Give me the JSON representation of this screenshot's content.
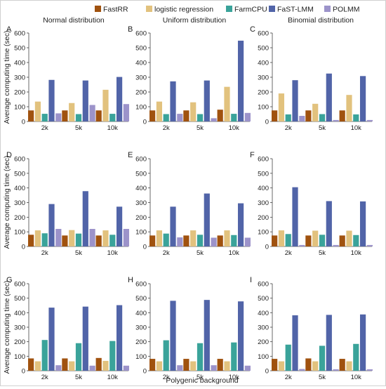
{
  "figure": {
    "xlabel": "Polygenic background",
    "ylabel": "Average computing time (sec)",
    "column_titles": [
      "Normal distribution",
      "Uniform distribution",
      "Binomial distribution"
    ]
  },
  "legend": {
    "placement": "top-center",
    "items": [
      {
        "name": "FastRR",
        "color": "#a0520f"
      },
      {
        "name": "logistic regression",
        "color": "#e2c27e"
      },
      {
        "name": "FarmCPU",
        "color": "#3aa39a"
      },
      {
        "name": "FaST-LMM",
        "color": "#5164a8"
      },
      {
        "name": "POLMM",
        "color": "#9c93ca"
      }
    ]
  },
  "chart_data": [
    {
      "type": "bar",
      "panel": "A",
      "categories": [
        "2k",
        "5k",
        "10k"
      ],
      "ylim": [
        0,
        600
      ],
      "yticks": [
        0,
        100,
        200,
        300,
        400,
        500,
        600
      ],
      "series": [
        {
          "name": "FastRR",
          "values": [
            75,
            75,
            75
          ]
        },
        {
          "name": "logistic regression",
          "values": [
            135,
            125,
            215
          ]
        },
        {
          "name": "FarmCPU",
          "values": [
            52,
            50,
            52
          ]
        },
        {
          "name": "FaST-LMM",
          "values": [
            282,
            278,
            302
          ]
        },
        {
          "name": "POLMM",
          "values": [
            55,
            112,
            118
          ]
        }
      ]
    },
    {
      "type": "bar",
      "panel": "B",
      "categories": [
        "2k",
        "5k",
        "10k"
      ],
      "ylim": [
        0,
        600
      ],
      "yticks": [
        0,
        100,
        200,
        300,
        400,
        500,
        600
      ],
      "series": [
        {
          "name": "FastRR",
          "values": [
            75,
            75,
            80
          ]
        },
        {
          "name": "logistic regression",
          "values": [
            135,
            130,
            235
          ]
        },
        {
          "name": "FarmCPU",
          "values": [
            50,
            50,
            52
          ]
        },
        {
          "name": "FaST-LMM",
          "values": [
            272,
            278,
            548
          ]
        },
        {
          "name": "POLMM",
          "values": [
            52,
            22,
            58
          ]
        }
      ]
    },
    {
      "type": "bar",
      "panel": "C",
      "categories": [
        "2k",
        "5k",
        "10k"
      ],
      "ylim": [
        0,
        600
      ],
      "yticks": [
        0,
        100,
        200,
        300,
        400,
        500,
        600
      ],
      "series": [
        {
          "name": "FastRR",
          "values": [
            75,
            75,
            75
          ]
        },
        {
          "name": "logistic regression",
          "values": [
            190,
            120,
            180
          ]
        },
        {
          "name": "FarmCPU",
          "values": [
            48,
            50,
            48
          ]
        },
        {
          "name": "FaST-LMM",
          "values": [
            280,
            325,
            308
          ]
        },
        {
          "name": "POLMM",
          "values": [
            38,
            10,
            10
          ]
        }
      ]
    },
    {
      "type": "bar",
      "panel": "D",
      "categories": [
        "2k",
        "5k",
        "10k"
      ],
      "ylim": [
        0,
        600
      ],
      "yticks": [
        0,
        100,
        200,
        300,
        400,
        500,
        600
      ],
      "series": [
        {
          "name": "FastRR",
          "values": [
            80,
            75,
            75
          ]
        },
        {
          "name": "logistic regression",
          "values": [
            110,
            112,
            110
          ]
        },
        {
          "name": "FarmCPU",
          "values": [
            90,
            88,
            80
          ]
        },
        {
          "name": "FaST-LMM",
          "values": [
            290,
            378,
            272
          ]
        },
        {
          "name": "POLMM",
          "values": [
            120,
            120,
            120
          ]
        }
      ]
    },
    {
      "type": "bar",
      "panel": "E",
      "categories": [
        "2k",
        "5k",
        "10k"
      ],
      "ylim": [
        0,
        600
      ],
      "yticks": [
        0,
        100,
        200,
        300,
        400,
        500,
        600
      ],
      "series": [
        {
          "name": "FastRR",
          "values": [
            75,
            75,
            75
          ]
        },
        {
          "name": "logistic regression",
          "values": [
            110,
            110,
            110
          ]
        },
        {
          "name": "FarmCPU",
          "values": [
            88,
            80,
            78
          ]
        },
        {
          "name": "FaST-LMM",
          "values": [
            272,
            362,
            295
          ]
        },
        {
          "name": "POLMM",
          "values": [
            62,
            60,
            60
          ]
        }
      ]
    },
    {
      "type": "bar",
      "panel": "F",
      "categories": [
        "2k",
        "5k",
        "10k"
      ],
      "ylim": [
        0,
        600
      ],
      "yticks": [
        0,
        100,
        200,
        300,
        400,
        500,
        600
      ],
      "series": [
        {
          "name": "FastRR",
          "values": [
            75,
            75,
            75
          ]
        },
        {
          "name": "logistic regression",
          "values": [
            110,
            108,
            108
          ]
        },
        {
          "name": "FarmCPU",
          "values": [
            85,
            80,
            78
          ]
        },
        {
          "name": "FaST-LMM",
          "values": [
            405,
            310,
            308
          ]
        },
        {
          "name": "POLMM",
          "values": [
            10,
            10,
            10
          ]
        }
      ]
    },
    {
      "type": "bar",
      "panel": "G",
      "categories": [
        "2k",
        "5k",
        "10k"
      ],
      "ylim": [
        0,
        600
      ],
      "yticks": [
        0,
        100,
        200,
        300,
        400,
        500,
        600
      ],
      "series": [
        {
          "name": "FastRR",
          "values": [
            85,
            85,
            88
          ]
        },
        {
          "name": "logistic regression",
          "values": [
            65,
            65,
            68
          ]
        },
        {
          "name": "FarmCPU",
          "values": [
            212,
            190,
            205
          ]
        },
        {
          "name": "FaST-LMM",
          "values": [
            435,
            442,
            452
          ]
        },
        {
          "name": "POLMM",
          "values": [
            38,
            35,
            35
          ]
        }
      ]
    },
    {
      "type": "bar",
      "panel": "H",
      "categories": [
        "2k",
        "5k",
        "10k"
      ],
      "ylim": [
        0,
        600
      ],
      "yticks": [
        0,
        100,
        200,
        300,
        400,
        500,
        600
      ],
      "series": [
        {
          "name": "FastRR",
          "values": [
            82,
            82,
            82
          ]
        },
        {
          "name": "logistic regression",
          "values": [
            65,
            65,
            65
          ]
        },
        {
          "name": "FarmCPU",
          "values": [
            210,
            190,
            195
          ]
        },
        {
          "name": "FaST-LMM",
          "values": [
            482,
            488,
            478
          ]
        },
        {
          "name": "POLMM",
          "values": [
            38,
            38,
            35
          ]
        }
      ]
    },
    {
      "type": "bar",
      "panel": "I",
      "categories": [
        "2k",
        "5k",
        "10k"
      ],
      "ylim": [
        0,
        600
      ],
      "yticks": [
        0,
        100,
        200,
        300,
        400,
        500,
        600
      ],
      "series": [
        {
          "name": "FastRR",
          "values": [
            82,
            85,
            82
          ]
        },
        {
          "name": "logistic regression",
          "values": [
            65,
            65,
            65
          ]
        },
        {
          "name": "FarmCPU",
          "values": [
            180,
            172,
            185
          ]
        },
        {
          "name": "FaST-LMM",
          "values": [
            382,
            385,
            388
          ]
        },
        {
          "name": "POLMM",
          "values": [
            12,
            10,
            10
          ]
        }
      ]
    }
  ]
}
